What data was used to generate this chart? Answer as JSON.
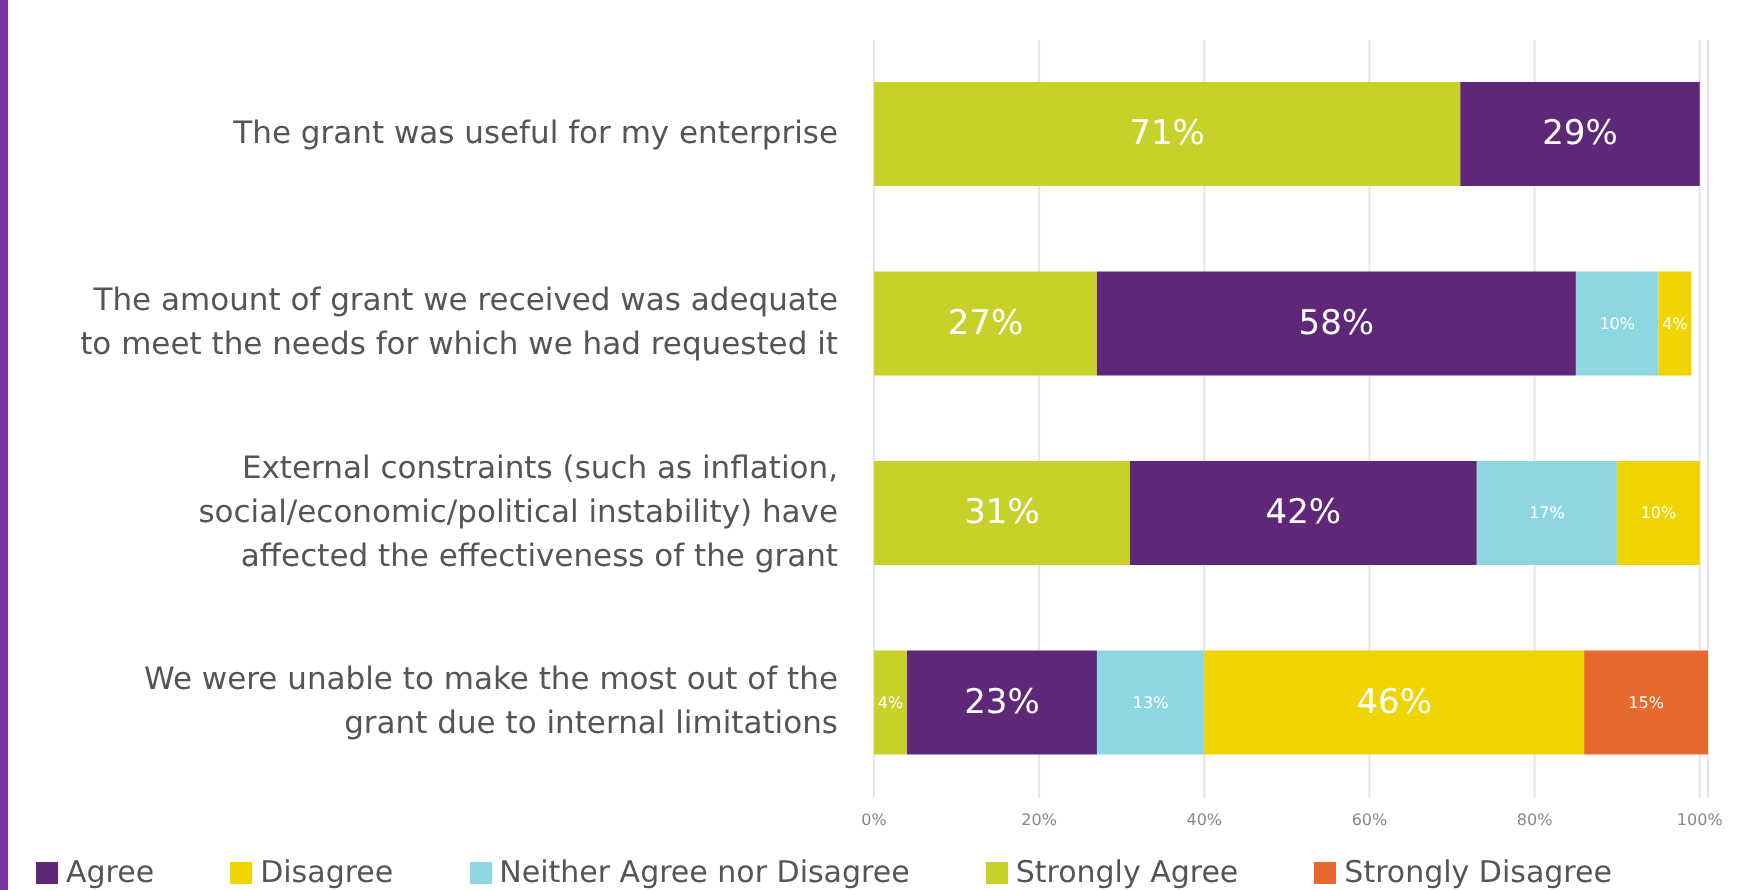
{
  "chart_data": {
    "type": "bar",
    "orientation": "horizontal",
    "stacked": true,
    "categories": [
      "The grant was useful for my enterprise",
      "The amount of grant we received was adequate to meet the needs for which we had requested it",
      "External constraints (such as inflation, social/economic/political instability) have affected the effectiveness of the grant",
      "We were unable to make the most out of the grant due to internal limitations"
    ],
    "series": [
      {
        "name": "Strongly Agree",
        "color": "#c8d12a",
        "values": [
          71,
          27,
          31,
          4
        ],
        "value_labels": [
          "71%",
          "27%",
          "31%",
          "4%"
        ]
      },
      {
        "name": "Agree",
        "color": "#5e2777",
        "values": [
          29,
          58,
          42,
          23
        ],
        "value_labels": [
          "29%",
          "58%",
          "42%",
          "23%"
        ]
      },
      {
        "name": "Neither Agree nor Disagree",
        "color": "#8fd6e3",
        "values": [
          null,
          10,
          17,
          13
        ],
        "value_labels": [
          null,
          "10%",
          "17%",
          "13%"
        ]
      },
      {
        "name": "Disagree",
        "color": "#f0d400",
        "values": [
          null,
          4,
          10,
          46
        ],
        "value_labels": [
          null,
          "4%",
          "10%",
          "46%"
        ]
      },
      {
        "name": "Strongly Disagree",
        "color": "#e8692d",
        "values": [
          null,
          null,
          null,
          15
        ],
        "value_labels": [
          null,
          null,
          null,
          "15%"
        ]
      }
    ],
    "xlim": [
      0,
      101
    ],
    "xticks": [
      {
        "value": 0,
        "label": "0%"
      },
      {
        "value": 20,
        "label": "20%"
      },
      {
        "value": 40,
        "label": "40%"
      },
      {
        "value": 60,
        "label": "60%"
      },
      {
        "value": 80,
        "label": "80%"
      },
      {
        "value": 100,
        "label": "100%"
      }
    ],
    "grid": "x",
    "legend": "bottom"
  }
}
